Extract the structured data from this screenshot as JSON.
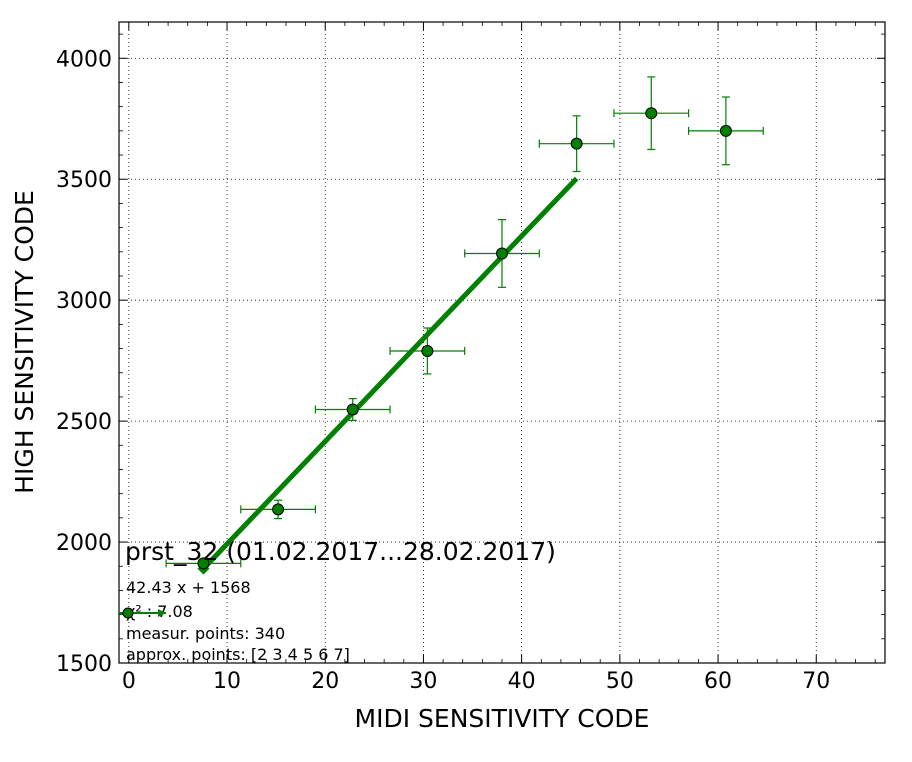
{
  "chart_data": {
    "type": "scatter",
    "title": "",
    "xlabel": "MIDI SENSITIVITY CODE",
    "ylabel": "HIGH SENSITIVITY CODE",
    "xlim": [
      -1,
      77
    ],
    "ylim": [
      1500,
      4150
    ],
    "x_ticks": [
      0,
      10,
      20,
      30,
      40,
      50,
      60,
      70
    ],
    "y_ticks": [
      1500,
      2000,
      2500,
      3000,
      3500,
      4000
    ],
    "grid": true,
    "series": [
      {
        "kind": "errorbar-points",
        "color": "#008000",
        "marker_face": "#008000",
        "points": [
          {
            "x": 7.6,
            "y": 1912,
            "xerr": 3.8,
            "yerr": 0
          },
          {
            "x": 15.2,
            "y": 2135,
            "xerr": 3.8,
            "yerr": 38
          },
          {
            "x": 22.8,
            "y": 2548,
            "xerr": 3.8,
            "yerr": 45
          },
          {
            "x": 30.4,
            "y": 2790,
            "xerr": 3.8,
            "yerr": 95
          },
          {
            "x": 38.0,
            "y": 3193,
            "xerr": 3.8,
            "yerr": 140
          },
          {
            "x": 45.6,
            "y": 3647,
            "xerr": 3.8,
            "yerr": 115
          },
          {
            "x": 53.2,
            "y": 3773,
            "xerr": 3.8,
            "yerr": 150
          },
          {
            "x": 60.8,
            "y": 3700,
            "xerr": 3.8,
            "yerr": 140
          }
        ]
      },
      {
        "kind": "fit-line",
        "color": "#008000",
        "x": [
          7.6,
          45.6
        ],
        "y": [
          1890,
          3503
        ]
      }
    ],
    "annotation": {
      "title": "prst_32 (01.02.2017...28.02.2017)",
      "lines": [
        "42.43 x + 1568",
        "χ² : 7.08",
        "measur. points: 340",
        "approx. points: [2 3 4 5 6 7]"
      ]
    }
  }
}
